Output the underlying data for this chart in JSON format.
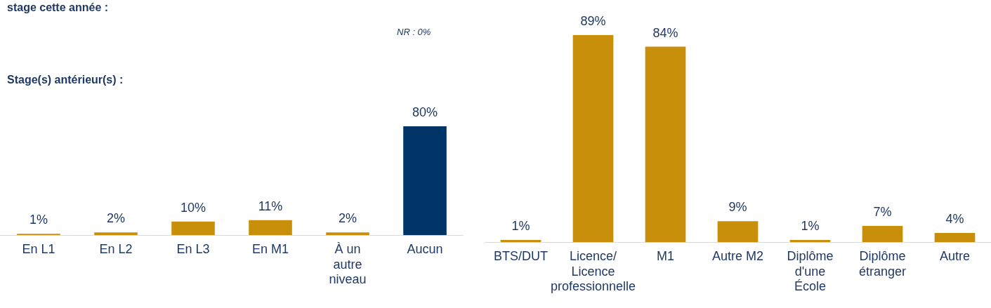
{
  "chart_data": [
    {
      "type": "bar",
      "title": "Stage(s) antérieur(s) :",
      "annotations": [
        "stage cette année :",
        "NR : 0%"
      ],
      "categories": [
        "En L1",
        "En L2",
        "En L3",
        "En M1",
        "À un autre niveau",
        "Aucun"
      ],
      "values": [
        1,
        2,
        10,
        11,
        2,
        80
      ],
      "colors": [
        "#c8900a",
        "#c8900a",
        "#c8900a",
        "#c8900a",
        "#c8900a",
        "#003366"
      ],
      "value_labels": [
        "1%",
        "2%",
        "10%",
        "11%",
        "2%",
        "80%"
      ],
      "grid": false,
      "legend": false
    },
    {
      "type": "bar",
      "categories": [
        "BTS/DUT",
        "Licence/ Licence professionnelle",
        "M1",
        "Autre M2",
        "Diplôme d'une École",
        "Diplôme étranger",
        "Autre"
      ],
      "values": [
        1,
        89,
        84,
        9,
        1,
        7,
        4
      ],
      "colors": [
        "#c8900a",
        "#c8900a",
        "#c8900a",
        "#c8900a",
        "#c8900a",
        "#c8900a",
        "#c8900a"
      ],
      "value_labels": [
        "1%",
        "89%",
        "84%",
        "9%",
        "1%",
        "7%",
        "4%"
      ],
      "grid": false,
      "legend": false
    }
  ]
}
